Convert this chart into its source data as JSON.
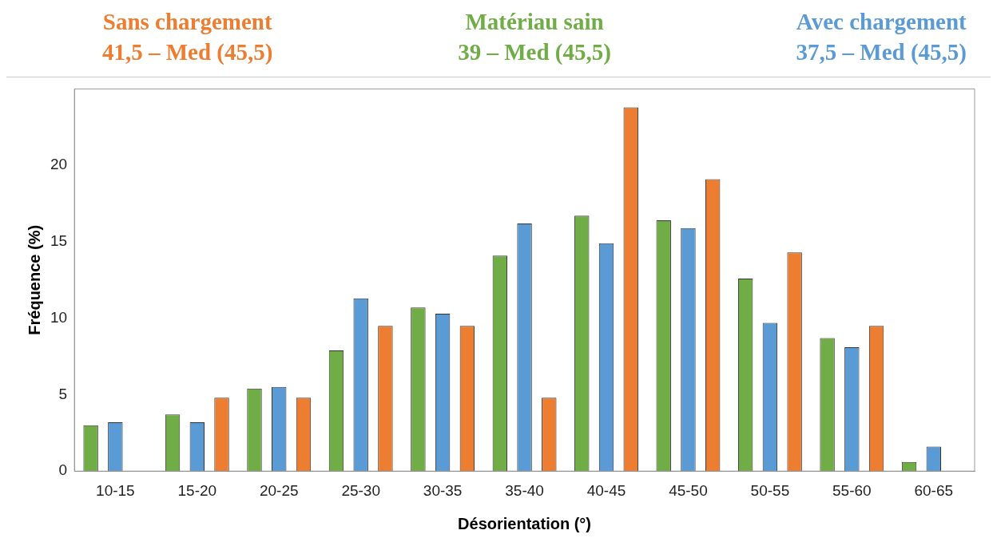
{
  "chart_data": {
    "type": "bar",
    "xlabel": "Désorientation (°)",
    "ylabel": "Fréquence (%)",
    "categories": [
      "10-15",
      "15-20",
      "20-25",
      "25-30",
      "30-35",
      "35-40",
      "40-45",
      "45-50",
      "50-55",
      "55-60",
      "60-65"
    ],
    "series": [
      {
        "name": "Matériau sain",
        "color": "#70ad47",
        "values": [
          3.0,
          3.7,
          5.4,
          7.9,
          10.7,
          14.1,
          16.7,
          16.4,
          12.6,
          8.7,
          0.6
        ]
      },
      {
        "name": "Avec chargement",
        "color": "#5b9bd5",
        "values": [
          3.2,
          3.2,
          5.5,
          11.3,
          10.3,
          16.2,
          14.9,
          15.9,
          9.7,
          8.1,
          1.6
        ]
      },
      {
        "name": "Sans chargement",
        "color": "#ed7d31",
        "values": [
          null,
          4.8,
          4.8,
          9.5,
          9.5,
          4.8,
          23.8,
          19.1,
          14.3,
          9.5,
          null
        ]
      }
    ],
    "annotations": [
      "41,5 – Med (45,5)",
      "39 – Med (45,5)",
      "37,5 – Med (45,5)"
    ],
    "ylim": [
      0,
      25
    ],
    "yticks": [
      0,
      5,
      10,
      15,
      20
    ],
    "grid": false,
    "legend": "top"
  }
}
